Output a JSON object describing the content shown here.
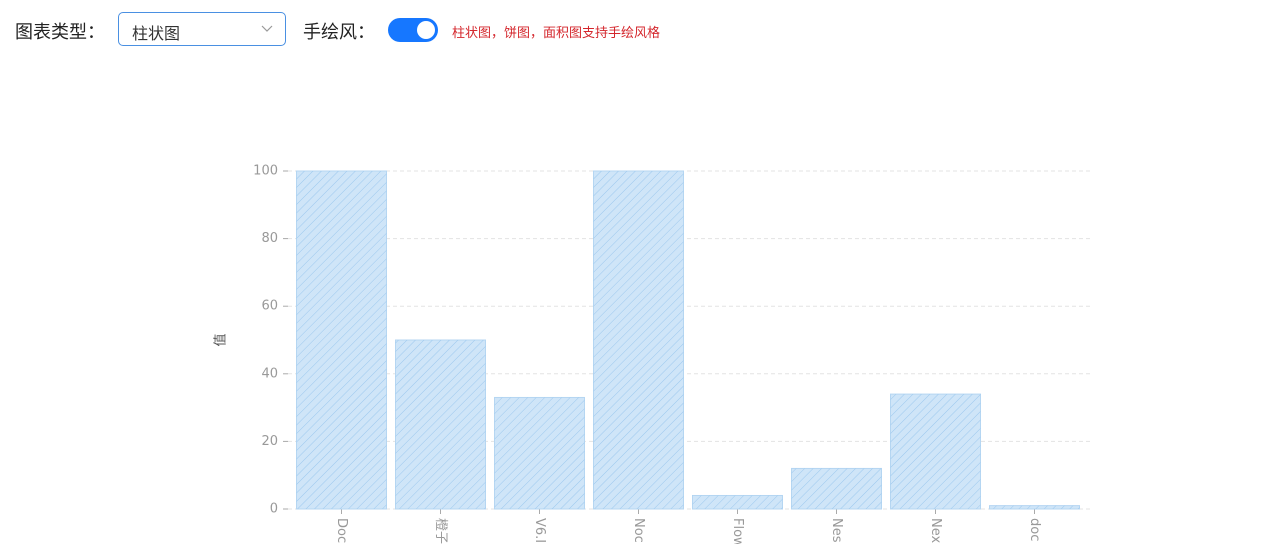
{
  "controls": {
    "chart_type_label": "图表类型：",
    "chart_type_value": "柱状图",
    "hand_drawn_label": "手绘风：",
    "hand_drawn": true,
    "note": "柱状图，饼图，面积图支持手绘风格"
  },
  "chart_data": {
    "type": "bar",
    "y_label": "值",
    "categories": [
      "Doc",
      "橙子",
      "V6.I",
      "Noc",
      "Flow",
      "Nes",
      "Nex",
      "doc"
    ],
    "values": [
      100,
      50,
      33,
      100,
      4,
      12,
      34,
      1
    ],
    "color": "#cfe5f8",
    "ylim": [
      0,
      100
    ],
    "yticks": [
      0,
      20,
      40,
      60,
      80,
      100
    ],
    "grid": true
  }
}
